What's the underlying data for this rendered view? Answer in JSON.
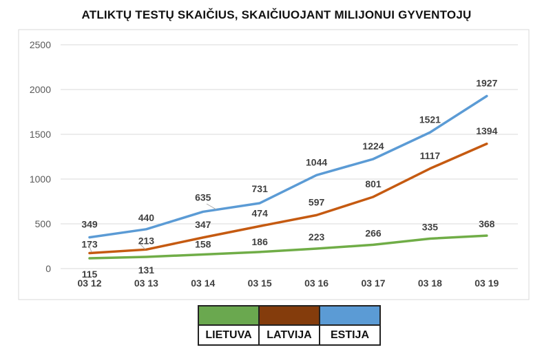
{
  "chart_data": {
    "type": "line",
    "title": "ATLIKTŲ TESTŲ SKAIČIUS, SKAIČIUOJANT MILIJONUI GYVENTOJŲ",
    "categories": [
      "03 12",
      "03 13",
      "03 14",
      "03 15",
      "03 16",
      "03 17",
      "03 18",
      "03 19"
    ],
    "ylim": [
      0,
      2500
    ],
    "yticks": [
      "0",
      "500",
      "1000",
      "1500",
      "2000",
      "2500"
    ],
    "grid": true,
    "legend_placement": "bottom-center",
    "series": [
      {
        "name": "LIETUVA",
        "color": "#70ad47",
        "values": [
          115,
          131,
          158,
          186,
          223,
          266,
          335,
          368
        ],
        "labels": [
          "115",
          "131",
          "158",
          "186",
          "223",
          "266",
          "335",
          "368"
        ]
      },
      {
        "name": "LATVIJA",
        "color": "#c55a11",
        "values": [
          173,
          213,
          347,
          474,
          597,
          801,
          1117,
          1394
        ],
        "labels": [
          "173",
          "213",
          "347",
          "474",
          "597",
          "801",
          "1117",
          "1394"
        ]
      },
      {
        "name": "ESTIJA",
        "color": "#5b9bd5",
        "values": [
          349,
          440,
          635,
          731,
          1044,
          1224,
          1521,
          1927
        ],
        "labels": [
          "349",
          "440",
          "635",
          "731",
          "1044",
          "1224",
          "1521",
          "1927"
        ]
      }
    ]
  },
  "legend": {
    "items": [
      {
        "label": "LIETUVA",
        "color": "#6aa84f"
      },
      {
        "label": "LATVIJA",
        "color": "#843c0c"
      },
      {
        "label": "ESTIJA",
        "color": "#5b9bd5"
      }
    ]
  }
}
